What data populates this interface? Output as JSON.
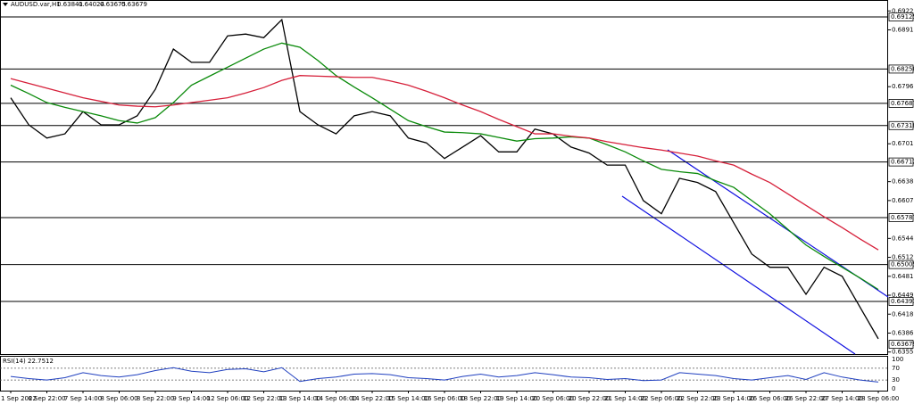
{
  "chart_data": {
    "type": "line",
    "title": "AUDUSD.var,H1",
    "ohlc": [
      0.63841,
      0.64024,
      0.63675,
      0.63679
    ],
    "categories": [
      "1 Sep 2022",
      null,
      "6 Sep 22:00",
      null,
      "7 Sep 14:00",
      null,
      "8 Sep 06:00",
      null,
      "8 Sep 22:00",
      null,
      "9 Sep 14:00",
      null,
      "12 Sep 06:00",
      null,
      "12 Sep 22:00",
      null,
      "13 Sep 14:00",
      null,
      "14 Sep 06:00",
      null,
      "14 Sep 22:00",
      null,
      "15 Sep 14:00",
      null,
      "16 Sep 06:00",
      null,
      "18 Sep 22:00",
      null,
      "19 Sep 14:00",
      null,
      "20 Sep 06:00",
      null,
      "20 Sep 22:00",
      null,
      "21 Sep 14:00",
      null,
      "22 Sep 06:00",
      null,
      "22 Sep 22:00",
      null,
      "23 Sep 14:00",
      null,
      "26 Sep 06:00",
      null,
      "26 Sep 22:00",
      null,
      "27 Sep 14:00",
      null,
      "28 Sep 06:00"
    ],
    "series": [
      {
        "color": "#000000",
        "values": [
          0.6778,
          0.6733,
          0.6711,
          0.6718,
          0.6755,
          0.6733,
          0.6733,
          0.6748,
          0.6792,
          0.6859,
          0.6837,
          0.6837,
          0.6881,
          0.6884,
          0.6878,
          0.6908,
          0.6755,
          0.6733,
          0.6718,
          0.6748,
          0.6755,
          0.6748,
          0.6711,
          0.6703,
          0.6677,
          0.6696,
          0.6715,
          0.6688,
          0.6688,
          0.6726,
          0.6718,
          0.6696,
          0.6686,
          0.6666,
          0.6666,
          0.6607,
          0.6585,
          0.6644,
          0.6637,
          0.6622,
          0.657,
          0.6518,
          0.6496,
          0.6496,
          0.6451,
          0.6496,
          0.6481,
          0.6429,
          0.6377
        ]
      },
      {
        "color": "#0a8a0a",
        "values": [
          0.6799,
          0.6785,
          0.677,
          0.6762,
          0.6755,
          0.6748,
          0.674,
          0.6736,
          0.6745,
          0.677,
          0.6799,
          0.6814,
          0.6829,
          0.6844,
          0.6859,
          0.6869,
          0.6862,
          0.684,
          0.6815,
          0.6796,
          0.6778,
          0.6759,
          0.674,
          0.673,
          0.6721,
          0.672,
          0.6718,
          0.6712,
          0.6706,
          0.671,
          0.6711,
          0.6713,
          0.6711,
          0.67,
          0.6688,
          0.6673,
          0.6659,
          0.6655,
          0.6652,
          0.664,
          0.6629,
          0.6607,
          0.6585,
          0.6559,
          0.6533,
          0.6514,
          0.6496,
          0.6478,
          0.6459
        ]
      },
      {
        "color": "#d6203a",
        "values": [
          0.681,
          0.6802,
          0.6794,
          0.6786,
          0.6778,
          0.6772,
          0.6766,
          0.6764,
          0.6763,
          0.6766,
          0.677,
          0.6774,
          0.6778,
          0.6786,
          0.6795,
          0.6807,
          0.6815,
          0.6814,
          0.6813,
          0.6812,
          0.6812,
          0.6806,
          0.6799,
          0.6789,
          0.6778,
          0.6766,
          0.6755,
          0.6742,
          0.673,
          0.6718,
          0.6718,
          0.6714,
          0.6711,
          0.6705,
          0.67,
          0.6695,
          0.6691,
          0.6686,
          0.6681,
          0.6673,
          0.6666,
          0.6651,
          0.6637,
          0.6618,
          0.6599,
          0.658,
          0.6562,
          0.6543,
          0.6525
        ]
      }
    ],
    "levels": [
      0.69125,
      0.68258,
      0.67687,
      0.67318,
      0.66712,
      0.65787,
      0.65005,
      0.64391
    ],
    "ylim": [
      0.63516,
      0.69407
    ],
    "yticks": [
      0.69225,
      {
        "value": 0.6891,
        "label": "0.68910"
      },
      0.67965,
      0.67015,
      0.66385,
      {
        "value": 0.6607,
        "label": "0.66070"
      },
      {
        "value": 0.6544,
        "label": "0.65440"
      },
      0.65125,
      {
        "value": 0.6481,
        "label": "0.64810"
      },
      0.64495,
      {
        "value": 0.6418,
        "label": "0.64180"
      },
      0.63865,
      {
        "value": 0.6355,
        "label": "0.63550"
      }
    ],
    "rsi": {
      "name": "RSI(14)",
      "current": 22.7512,
      "color": "#1f3fbf",
      "ylim": [
        0,
        100
      ],
      "yticks": [
        100,
        70,
        30,
        0
      ],
      "values": [
        42,
        35,
        30,
        38,
        55,
        45,
        40,
        48,
        62,
        72,
        60,
        55,
        66,
        68,
        58,
        72,
        25,
        35,
        40,
        50,
        52,
        48,
        38,
        35,
        30,
        42,
        50,
        40,
        45,
        55,
        48,
        40,
        38,
        32,
        35,
        28,
        30,
        55,
        50,
        45,
        35,
        30,
        38,
        45,
        32,
        55,
        40,
        30,
        23
      ]
    }
  }
}
